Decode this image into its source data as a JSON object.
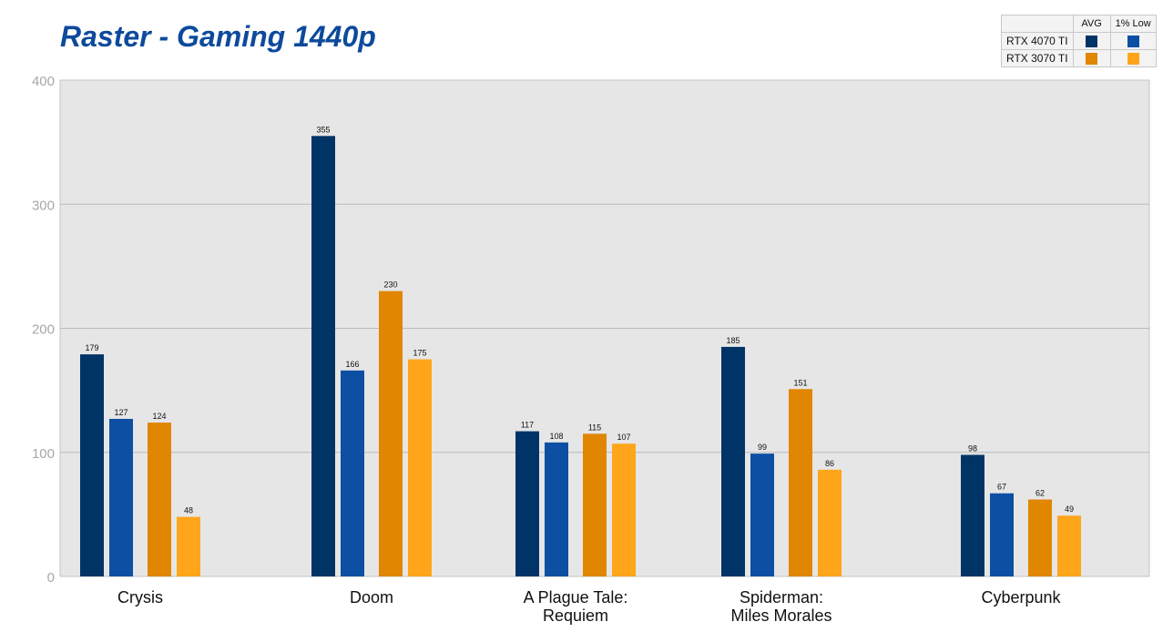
{
  "header": {
    "title": "Raster - Gaming 1440p"
  },
  "legend": {
    "columns": [
      "AVG",
      "1% Low"
    ],
    "rows": [
      {
        "name": "RTX 4070 TI",
        "colors": [
          "#003466",
          "#0d4fa3"
        ]
      },
      {
        "name": "RTX 3070 TI",
        "colors": [
          "#e08600",
          "#ffa51a"
        ]
      }
    ]
  },
  "chart_data": {
    "type": "bar",
    "title": "Raster - Gaming 1440p",
    "xlabel": "",
    "ylabel": "",
    "ylim": [
      0,
      400
    ],
    "yticks": [
      0,
      100,
      200,
      300,
      400
    ],
    "grid": true,
    "legend_position": "top-right",
    "categories": [
      [
        "Crysis"
      ],
      [
        "Doom"
      ],
      [
        "A Plague Tale:",
        "Requiem"
      ],
      [
        "Spiderman:",
        "Miles Morales"
      ],
      [
        "Cyberpunk"
      ]
    ],
    "series": [
      {
        "name": "RTX 4070 TI AVG",
        "color": "#003466",
        "values": [
          179,
          355,
          117,
          185,
          98
        ]
      },
      {
        "name": "RTX 4070 TI 1% Low",
        "color": "#0d4fa3",
        "values": [
          127,
          166,
          108,
          99,
          67
        ]
      },
      {
        "name": "RTX 3070 TI AVG",
        "color": "#e08600",
        "values": [
          124,
          230,
          115,
          151,
          62
        ]
      },
      {
        "name": "RTX 3070 TI 1% Low",
        "color": "#ffa51a",
        "values": [
          48,
          175,
          107,
          86,
          49
        ]
      }
    ]
  }
}
